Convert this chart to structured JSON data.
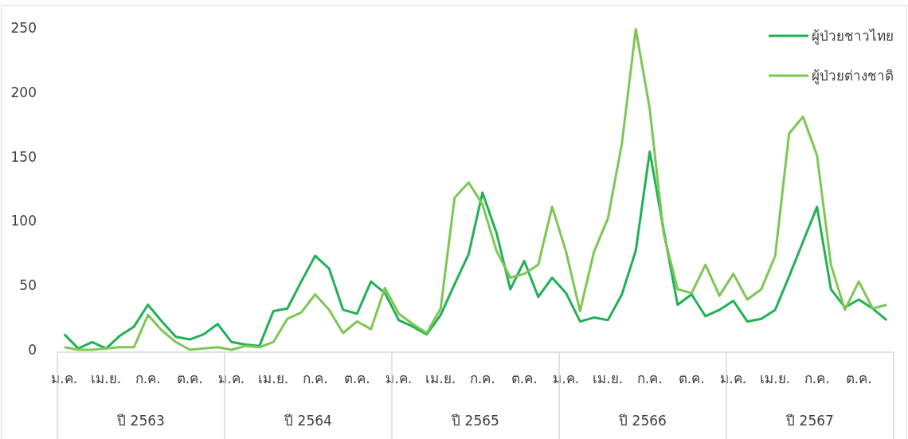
{
  "chart_data": {
    "type": "line",
    "categories": [
      "ม.ค.",
      null,
      null,
      "เม.ย.",
      null,
      null,
      "ก.ค.",
      null,
      null,
      "ต.ค.",
      null,
      null,
      "ม.ค.",
      null,
      null,
      "เม.ย.",
      null,
      null,
      "ก.ค.",
      null,
      null,
      "ต.ค.",
      null,
      null,
      "ม.ค.",
      null,
      null,
      "เม.ย.",
      null,
      null,
      "ก.ค.",
      null,
      null,
      "ต.ค.",
      null,
      null,
      "ม.ค.",
      null,
      null,
      "เม.ย.",
      null,
      null,
      "ก.ค.",
      null,
      null,
      "ต.ค.",
      null,
      null,
      "ม.ค.",
      null,
      null,
      "เม.ย.",
      null,
      null,
      "ก.ค.",
      null,
      null,
      "ต.ค.",
      null,
      null
    ],
    "series": [
      {
        "name": "ผู้ป่วยชาวไทย",
        "color": "#20b155",
        "values": [
          12,
          1,
          6,
          1,
          11,
          18,
          35,
          22,
          10,
          8,
          12,
          20,
          6,
          4,
          3,
          30,
          32,
          53,
          73,
          63,
          31,
          28,
          53,
          44,
          23,
          18,
          12,
          27,
          51,
          74,
          122,
          91,
          47,
          69,
          41,
          56,
          44,
          22,
          25,
          23,
          43,
          77,
          154,
          93,
          35,
          43,
          26,
          31,
          38,
          22,
          24,
          31,
          57,
          84,
          111,
          47,
          33,
          39,
          32,
          23
        ]
      },
      {
        "name": "ผู้ป่วยต่างชาติ",
        "color": "#7cc753",
        "values": [
          2,
          0,
          0,
          1,
          2,
          2,
          27,
          15,
          6,
          0,
          1,
          2,
          0,
          3,
          2,
          6,
          24,
          29,
          43,
          31,
          13,
          22,
          16,
          48,
          28,
          20,
          13,
          32,
          118,
          130,
          113,
          77,
          56,
          59,
          66,
          111,
          76,
          30,
          76,
          102,
          160,
          249,
          187,
          90,
          47,
          44,
          66,
          42,
          59,
          39,
          47,
          73,
          168,
          181,
          151,
          66,
          31,
          53,
          32,
          35
        ]
      }
    ],
    "ylim": [
      0,
      250
    ],
    "yticks": [
      0,
      50,
      100,
      150,
      200,
      250
    ],
    "legend": "top right",
    "annotations": [
      "ปี 2563",
      "ปี 2564",
      "ปี 2565",
      "ปี 2566",
      "ปี 2567"
    ]
  }
}
